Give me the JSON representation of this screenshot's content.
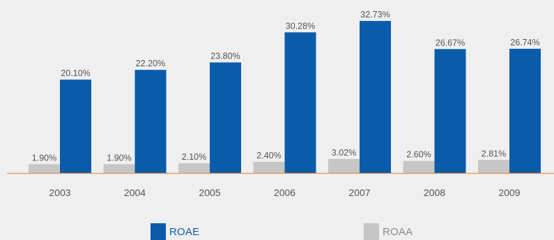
{
  "chart_data": {
    "type": "bar",
    "categories": [
      "2003",
      "2004",
      "2005",
      "2006",
      "2007",
      "2008",
      "2009"
    ],
    "series": [
      {
        "name": "ROAA",
        "values": [
          1.9,
          1.9,
          2.1,
          2.4,
          3.02,
          2.6,
          2.81
        ],
        "labels": [
          "1.90%",
          "1.90%",
          "2.10%",
          "2.40%",
          "3.02%",
          "2.60%",
          "2.81%"
        ],
        "color": "#c6c6c6"
      },
      {
        "name": "ROAE",
        "values": [
          20.1,
          22.2,
          23.8,
          30.28,
          32.73,
          26.67,
          26.74
        ],
        "labels": [
          "20.10%",
          "22.20%",
          "23.80%",
          "30.28%",
          "32.73%",
          "26.67%",
          "26.74%"
        ],
        "color": "#0a5cab"
      }
    ],
    "title": "",
    "xlabel": "",
    "ylabel": "",
    "legend_position": "bottom",
    "grid": false,
    "axis_color": "#e8944a",
    "label_color": "#555555"
  },
  "legend": {
    "roae_label": "ROAE",
    "roaa_label": "ROAA"
  }
}
